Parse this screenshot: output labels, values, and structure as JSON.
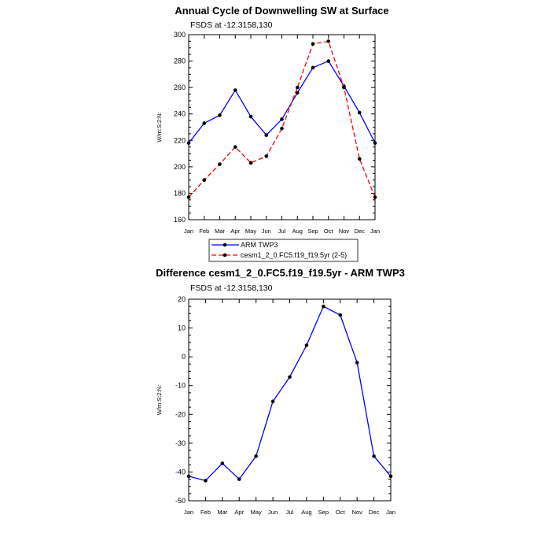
{
  "chart_data": [
    {
      "type": "line",
      "title": "Annual Cycle of Downwelling SW at Surface",
      "subtitle": "FSDS at -12.3158,130",
      "ylabel": "W/m:S:2:N:",
      "xlabel": "",
      "ylim": [
        160,
        300
      ],
      "yticks": [
        160,
        180,
        200,
        220,
        240,
        260,
        280,
        300
      ],
      "categories": [
        "Jan",
        "Feb",
        "Mar",
        "Apr",
        "May",
        "Jun",
        "Jul",
        "Aug",
        "Sep",
        "Oct",
        "Nov",
        "Dec",
        "Jan"
      ],
      "legend_position": "bottom",
      "series": [
        {
          "name": "ARM TWP3",
          "color": "#0000ff",
          "dash": "solid",
          "values": [
            218,
            233,
            239,
            258,
            238,
            224,
            236,
            256,
            275,
            280,
            261,
            241,
            218
          ]
        },
        {
          "name": "cesm1_2_0.FC5.f19_f19.5yr (2-5)",
          "color": "#ff0000",
          "dash": "dashed",
          "values": [
            177,
            190,
            202,
            215,
            203,
            208,
            229,
            260,
            293,
            295,
            260,
            206,
            177
          ]
        }
      ]
    },
    {
      "type": "line",
      "title": "Difference cesm1_2_0.FC5.f19_f19.5yr - ARM TWP3",
      "subtitle": "FSDS at -12.3158,130",
      "ylabel": "W/m:S:2:N:",
      "xlabel": "",
      "ylim": [
        -50,
        20
      ],
      "yticks": [
        -50,
        -40,
        -30,
        -20,
        -10,
        0,
        10,
        20
      ],
      "categories": [
        "Jan",
        "Feb",
        "Mar",
        "Apr",
        "May",
        "Jun",
        "Jul",
        "Aug",
        "Sep",
        "Oct",
        "Nov",
        "Dec",
        "Jan"
      ],
      "series": [
        {
          "color": "#0000ff",
          "dash": "solid",
          "values": [
            -41.5,
            -43,
            -37,
            -42.5,
            -34.5,
            -15.5,
            -7,
            4,
            17.5,
            14.5,
            -2,
            -34.5,
            -41.5
          ]
        }
      ]
    }
  ]
}
